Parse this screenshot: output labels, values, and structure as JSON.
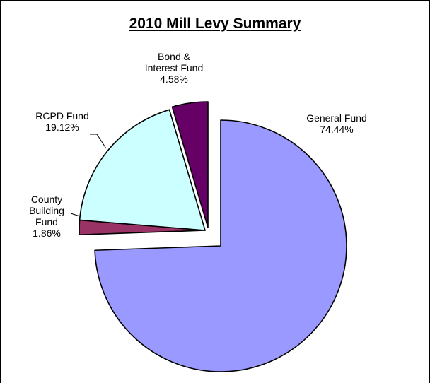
{
  "chart_data": {
    "type": "pie",
    "title": "2010 Mill Levy Summary",
    "slices": [
      {
        "name": "General Fund",
        "value": 74.44,
        "value_label": "74.44%",
        "color": "#9999FF",
        "label_lines": [
          "General Fund",
          "74.44%"
        ]
      },
      {
        "name": "County Building Fund",
        "value": 1.86,
        "value_label": "1.86%",
        "color": "#993366",
        "label_lines": [
          "County",
          "Building",
          "Fund",
          "1.86%"
        ]
      },
      {
        "name": "RCPD Fund",
        "value": 19.12,
        "value_label": "19.12%",
        "color": "#CCFFFF",
        "label_lines": [
          "RCPD Fund",
          "19.12%"
        ]
      },
      {
        "name": "Bond & Interest Fund",
        "value": 4.58,
        "value_label": "4.58%",
        "color": "#660066",
        "label_lines": [
          "Bond &",
          "Interest Fund",
          "4.58%"
        ]
      }
    ],
    "legend": "none",
    "exploded": true
  }
}
